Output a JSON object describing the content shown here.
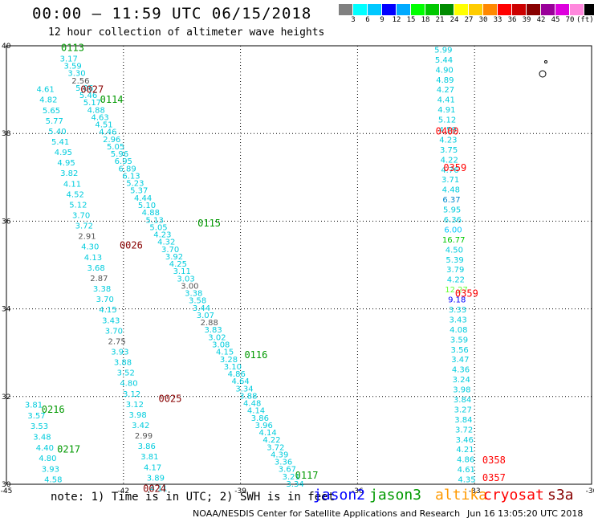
{
  "header": {
    "title": "00:00 – 11:59 UTC 06/15/2018",
    "subtitle": "12 hour collection of altimeter wave heights"
  },
  "color_scale": {
    "colors": [
      "#808080",
      "#00ffff",
      "#00c8ff",
      "#0000ff",
      "#00aaff",
      "#00ff00",
      "#00c800",
      "#008c00",
      "#ffff00",
      "#ffcc00",
      "#ff8800",
      "#ff0000",
      "#cc0000",
      "#880000",
      "#990099",
      "#dd00dd",
      "#ff88dd",
      "#000000"
    ],
    "labels": [
      "3",
      "6",
      "9",
      "12",
      "15",
      "18",
      "21",
      "24",
      "27",
      "30",
      "33",
      "36",
      "39",
      "42",
      "45",
      "70",
      "(ft)"
    ]
  },
  "footer": {
    "note": "note: 1) Time is in UTC; 2) SWH is in feet",
    "legend": [
      {
        "label": "jason2",
        "color": "#0000ff"
      },
      {
        "label": "jason3",
        "color": "#009900"
      },
      {
        "label": "altika",
        "color": "#ff9900"
      },
      {
        "label": "cryosat",
        "color": "#ff0000"
      },
      {
        "label": "s3a",
        "color": "#880000"
      }
    ],
    "credit": "NOAA/NESDIS Center for Satellite Applications and Research",
    "stamp": "Jun 16 13:05:20 UTC 2018"
  },
  "chart_data": {
    "type": "scatter",
    "xlim": [
      -45,
      -30
    ],
    "ylim": [
      30,
      40
    ],
    "x_ticks": [
      "-45",
      "-42",
      "-39",
      "-36",
      "-33",
      "-30"
    ],
    "y_ticks": [
      "40",
      "38",
      "36",
      "34",
      "32",
      "30"
    ],
    "grid": true,
    "time_labels": [
      {
        "text": "0113",
        "lon": -43.6,
        "lat": 39.95,
        "color": "#009900"
      },
      {
        "text": "0027",
        "lon": -43.1,
        "lat": 39.0,
        "color": "#880000"
      },
      {
        "text": "0114",
        "lon": -42.6,
        "lat": 38.77,
        "color": "#009900"
      },
      {
        "text": "0400",
        "lon": -34.0,
        "lat": 38.05,
        "color": "#ff0000"
      },
      {
        "text": "0359",
        "lon": -33.8,
        "lat": 37.22,
        "color": "#ff0000"
      },
      {
        "text": "0115",
        "lon": -40.1,
        "lat": 35.95,
        "color": "#009900"
      },
      {
        "text": "0026",
        "lon": -42.1,
        "lat": 35.45,
        "color": "#880000"
      },
      {
        "text": "0359",
        "lon": -33.5,
        "lat": 34.35,
        "color": "#ff0000"
      },
      {
        "text": "0116",
        "lon": -38.9,
        "lat": 32.95,
        "color": "#009900"
      },
      {
        "text": "0025",
        "lon": -41.1,
        "lat": 31.95,
        "color": "#880000"
      },
      {
        "text": "0216",
        "lon": -44.1,
        "lat": 31.7,
        "color": "#009900"
      },
      {
        "text": "0217",
        "lon": -43.7,
        "lat": 30.8,
        "color": "#009900"
      },
      {
        "text": "0358",
        "lon": -32.8,
        "lat": 30.55,
        "color": "#ff0000"
      },
      {
        "text": "0357",
        "lon": -32.8,
        "lat": 30.15,
        "color": "#ff0000"
      },
      {
        "text": "0117",
        "lon": -37.6,
        "lat": 30.2,
        "color": "#009900"
      },
      {
        "text": "0024",
        "lon": -41.5,
        "lat": 29.9,
        "color": "#880000"
      }
    ],
    "track_a": {
      "name": "jason3 track 0113-0117",
      "lon_start": -43.4,
      "lat_start": 39.7,
      "lon_end": -37.6,
      "lat_end": 30.0,
      "values": [
        "3.17",
        "3.59",
        "3.30",
        "2.56",
        "5.06",
        "5.46",
        "5.17",
        "4.88",
        "4.63",
        "4.51",
        "4.46",
        "2.96",
        "5.05",
        "5.96",
        "6.95",
        "6.89",
        "6.13",
        "5.23",
        "5.37",
        "4.44",
        "5.10",
        "4.88",
        "5.13",
        "5.05",
        "4.23",
        "4.32",
        "3.70",
        "3.92",
        "4.25",
        "3.11",
        "3.03",
        "3.00",
        "3.38",
        "3.58",
        "3.44",
        "3.07",
        "2.88",
        "3.83",
        "3.02",
        "3.08",
        "4.15",
        "3.28",
        "3.10",
        "4.86",
        "4.64",
        "3.34",
        "3.88",
        "4.48",
        "4.14",
        "3.86",
        "3.96",
        "4.14",
        "4.22",
        "3.72",
        "4.39",
        "3.36",
        "3.67",
        "3.21",
        "3.34"
      ]
    },
    "track_b": {
      "name": "s3a track 0024-0027",
      "lon_start": -44.0,
      "lat_start": 39.0,
      "lon_end": -41.1,
      "lat_end": 29.9,
      "values": [
        "4.61",
        "4.82",
        "5.65",
        "5.77",
        "5.40",
        "5.41",
        "4.95",
        "4.95",
        "3.82",
        "4.11",
        "4.52",
        "5.12",
        "3.70",
        "3.72",
        "2.91",
        "4.30",
        "4.13",
        "3.68",
        "2.87",
        "3.38",
        "3.70",
        "4.15",
        "3.43",
        "3.70",
        "2.75",
        "3.93",
        "3.88",
        "3.52",
        "4.80",
        "3.12",
        "3.12",
        "3.98",
        "3.42",
        "2.99",
        "3.86",
        "3.81",
        "4.17",
        "3.89",
        "4.11"
      ]
    },
    "track_c": {
      "name": "jason3 track 0216-0217",
      "lon_start": -44.3,
      "lat_start": 31.8,
      "lon_end": -43.8,
      "lat_end": 30.1,
      "values": [
        "3.81",
        "3.57",
        "3.53",
        "3.48",
        "4.40",
        "4.80",
        "3.93",
        "4.58"
      ]
    },
    "track_d": {
      "name": "cryosat track 0357-0400",
      "lon_start": -33.8,
      "lat_start": 39.9,
      "lon_end": -33.2,
      "lat_end": 30.1,
      "values": [
        "5.99",
        "5.44",
        "4.90",
        "4.89",
        "4.27",
        "4.41",
        "4.91",
        "5.12",
        "4.59",
        "4.23",
        "3.75",
        "4.22",
        "4.76",
        "3.71",
        "4.48",
        "6.37",
        "5.95",
        "6.36",
        "6.00",
        "16.77",
        "4.50",
        "5.39",
        "3.79",
        "4.22",
        "12.27",
        "9.18",
        "3.33",
        "3.43",
        "4.08",
        "3.59",
        "3.56",
        "3.47",
        "4.36",
        "3.24",
        "3.98",
        "3.84",
        "3.27",
        "3.84",
        "3.72",
        "3.46",
        "4.21",
        "4.86",
        "4.61",
        "4.35"
      ]
    },
    "special_colors": {
      "6.00": "#00c8ff",
      "16.77": "#00c800",
      "12.27": "#66ff33",
      "9.18": "#0000ff",
      "6.37": "#0088cc",
      "2.91": "#555555",
      "3.00": "#555555",
      "2.87": "#555555",
      "2.88": "#555555",
      "2.75": "#555555",
      "2.99": "#555555",
      "2.56": "#555555"
    }
  }
}
